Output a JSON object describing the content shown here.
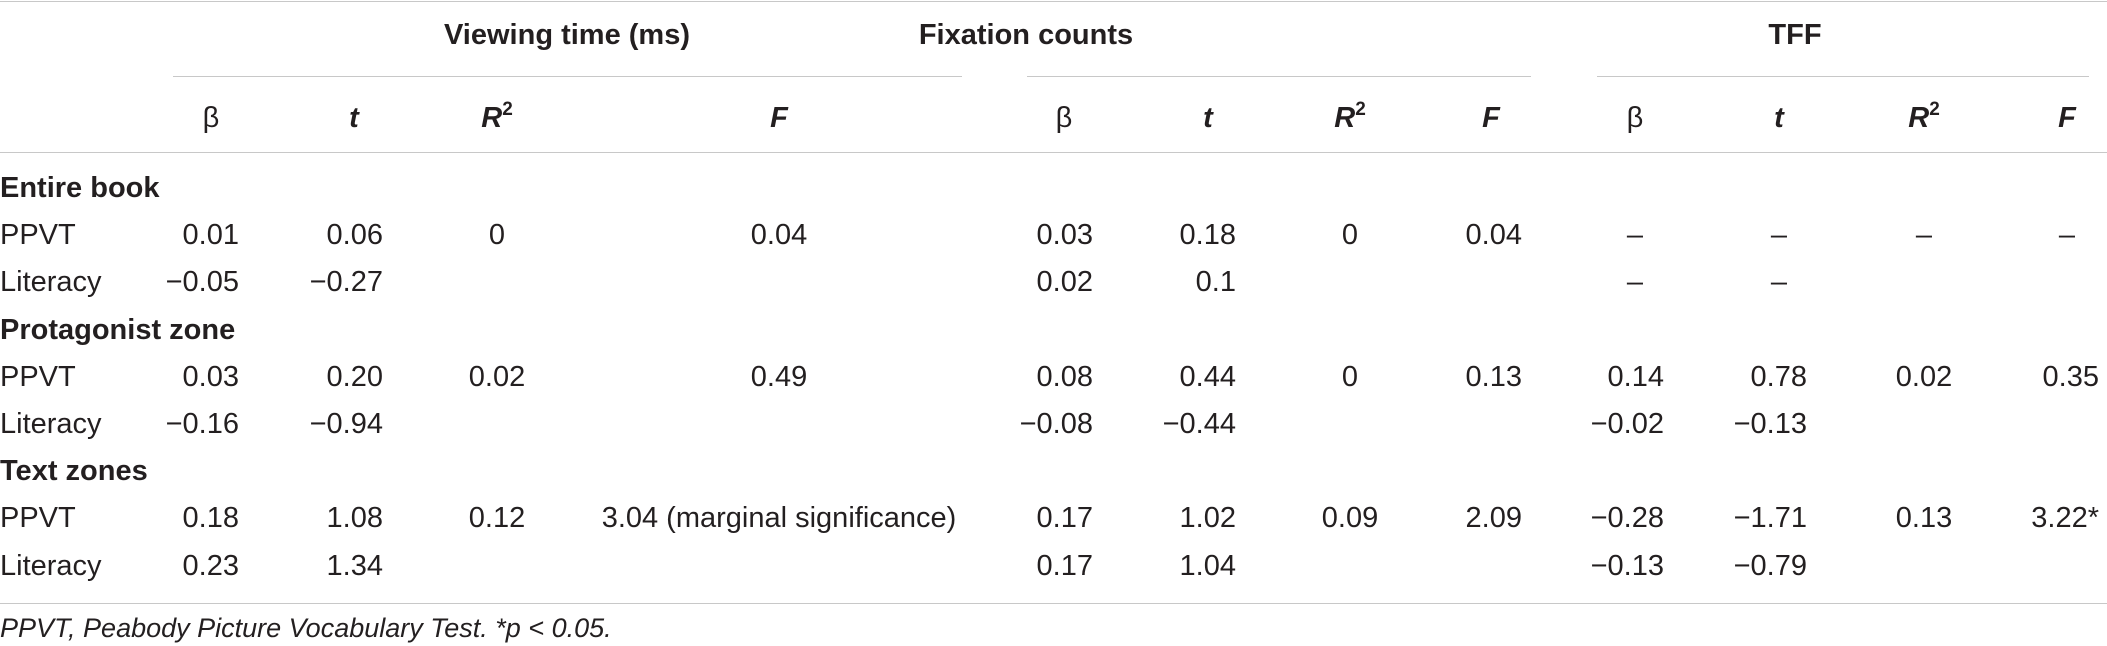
{
  "groups": {
    "viewing": "Viewing time (ms)",
    "fixation": "Fixation counts",
    "tff": "TFF"
  },
  "columns": {
    "beta": "β",
    "t": "t",
    "r": "R",
    "r_sup": "2",
    "f": "F"
  },
  "sections": [
    {
      "title": "Entire book",
      "rows": [
        {
          "label": "PPVT",
          "values": [
            "0.01",
            "0.06",
            "0",
            "0.04",
            "0.03",
            "0.18",
            "0",
            "0.04",
            "–",
            "–",
            "–",
            "–"
          ]
        },
        {
          "label": "Literacy",
          "values": [
            "−0.05",
            "−0.27",
            "",
            "",
            "0.02",
            "0.1",
            "",
            "",
            "–",
            "–",
            "",
            ""
          ]
        }
      ]
    },
    {
      "title": "Protagonist zone",
      "rows": [
        {
          "label": "PPVT",
          "values": [
            "0.03",
            "0.20",
            "0.02",
            "0.49",
            "0.08",
            "0.44",
            "0",
            "0.13",
            "0.14",
            "0.78",
            "0.02",
            "0.35"
          ]
        },
        {
          "label": "Literacy",
          "values": [
            "−0.16",
            "−0.94",
            "",
            "",
            "−0.08",
            "−0.44",
            "",
            "",
            "−0.02",
            "−0.13",
            "",
            ""
          ]
        }
      ]
    },
    {
      "title": "Text zones",
      "rows": [
        {
          "label": "PPVT",
          "values": [
            "0.18",
            "1.08",
            "0.12",
            "3.04 (marginal significance)",
            "0.17",
            "1.02",
            "0.09",
            "2.09",
            "−0.28",
            "−1.71",
            "0.13",
            "3.22*"
          ]
        },
        {
          "label": "Literacy",
          "values": [
            "0.23",
            "1.34",
            "",
            "",
            "0.17",
            "1.04",
            "",
            "",
            "−0.13",
            "−0.79",
            "",
            ""
          ]
        }
      ]
    }
  ],
  "footnote": "PPVT, Peabody Picture Vocabulary Test. *p < 0.05."
}
